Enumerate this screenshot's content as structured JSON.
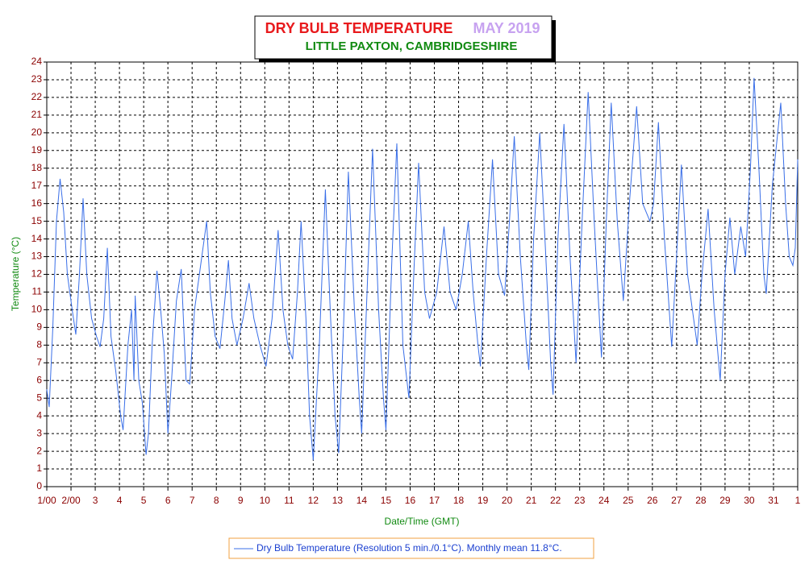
{
  "chart_data": {
    "type": "line",
    "title": "DRY BULB TEMPERATURE",
    "period": "MAY 2019",
    "subtitle": "LITTLE PAXTON, CAMBRIDGESHIRE",
    "x_label": "Date/Time (GMT)",
    "y_label": "Temperature (°C)",
    "grid": true,
    "xlim": [
      0,
      31
    ],
    "ylim": [
      0,
      24
    ],
    "yticks": [
      0,
      1,
      2,
      3,
      4,
      5,
      6,
      7,
      8,
      9,
      10,
      11,
      12,
      13,
      14,
      15,
      16,
      17,
      18,
      19,
      20,
      21,
      22,
      23,
      24
    ],
    "xticks": [
      {
        "value": 0,
        "label": "1/00"
      },
      {
        "value": 1,
        "label": "2/00"
      },
      {
        "value": 2,
        "label": "3"
      },
      {
        "value": 3,
        "label": "4"
      },
      {
        "value": 4,
        "label": "5"
      },
      {
        "value": 5,
        "label": "6"
      },
      {
        "value": 6,
        "label": "7"
      },
      {
        "value": 7,
        "label": "8"
      },
      {
        "value": 8,
        "label": "9"
      },
      {
        "value": 9,
        "label": "10"
      },
      {
        "value": 10,
        "label": "11"
      },
      {
        "value": 11,
        "label": "12"
      },
      {
        "value": 12,
        "label": "13"
      },
      {
        "value": 13,
        "label": "14"
      },
      {
        "value": 14,
        "label": "15"
      },
      {
        "value": 15,
        "label": "16"
      },
      {
        "value": 16,
        "label": "17"
      },
      {
        "value": 17,
        "label": "18"
      },
      {
        "value": 18,
        "label": "19"
      },
      {
        "value": 19,
        "label": "20"
      },
      {
        "value": 20,
        "label": "21"
      },
      {
        "value": 21,
        "label": "22"
      },
      {
        "value": 22,
        "label": "23"
      },
      {
        "value": 23,
        "label": "24"
      },
      {
        "value": 24,
        "label": "25"
      },
      {
        "value": 25,
        "label": "26"
      },
      {
        "value": 26,
        "label": "27"
      },
      {
        "value": 27,
        "label": "28"
      },
      {
        "value": 28,
        "label": "29"
      },
      {
        "value": 29,
        "label": "30"
      },
      {
        "value": 30,
        "label": "31"
      },
      {
        "value": 31,
        "label": "1"
      }
    ],
    "x": [
      0,
      0.1,
      0.25,
      0.4,
      0.55,
      0.7,
      0.85,
      1.05,
      1.2,
      1.35,
      1.5,
      1.65,
      1.85,
      2.05,
      2.2,
      2.35,
      2.5,
      2.65,
      2.85,
      3.05,
      3.15,
      3.35,
      3.5,
      3.6,
      3.65,
      3.8,
      3.95,
      4.1,
      4.2,
      4.35,
      4.55,
      4.7,
      4.85,
      5.0,
      5.15,
      5.35,
      5.55,
      5.75,
      5.9,
      6.1,
      6.35,
      6.6,
      6.75,
      6.95,
      7.15,
      7.35,
      7.5,
      7.65,
      7.85,
      8.1,
      8.35,
      8.55,
      8.8,
      9.05,
      9.3,
      9.55,
      9.75,
      9.95,
      10.15,
      10.35,
      10.5,
      10.7,
      10.85,
      11.0,
      11.25,
      11.5,
      11.7,
      11.9,
      12.05,
      12.25,
      12.45,
      12.7,
      12.9,
      13.0,
      13.25,
      13.45,
      13.7,
      13.9,
      14.0,
      14.25,
      14.45,
      14.7,
      14.95,
      15.15,
      15.35,
      15.6,
      15.8,
      16.1,
      16.4,
      16.65,
      16.9,
      17.15,
      17.4,
      17.6,
      17.8,
      17.9,
      18.15,
      18.4,
      18.65,
      18.9,
      19.1,
      19.3,
      19.55,
      19.8,
      19.9,
      20.1,
      20.35,
      20.6,
      20.8,
      20.9,
      21.1,
      21.35,
      21.6,
      21.85,
      22.1,
      22.35,
      22.6,
      22.9,
      23.1,
      23.3,
      23.55,
      23.8,
      24.05,
      24.35,
      24.6,
      24.9,
      25.05,
      25.25,
      25.5,
      25.8,
      26.0,
      26.2,
      26.45,
      26.85,
      27.05,
      27.3,
      27.55,
      27.8,
      28.0,
      28.2,
      28.4,
      28.65,
      28.85,
      29.05,
      29.2,
      29.4,
      29.6,
      29.7,
      29.95,
      30.3,
      30.5,
      30.65,
      30.8,
      30.9,
      31.0
    ],
    "series": [
      {
        "name": "Dry Bulb Temperature (Resolution 5 min./0.1°C). Monthly mean 11.8°C.",
        "color": "#3a6fe8",
        "values": [
          5.5,
          4.5,
          9,
          15,
          17.4,
          15.5,
          12,
          10,
          8.6,
          12,
          16.3,
          12,
          9.5,
          8.5,
          7.9,
          9.5,
          13.5,
          8.5,
          6.5,
          4,
          3.2,
          8,
          10,
          6,
          10.8,
          6,
          4.7,
          1.8,
          3,
          8,
          12.2,
          10,
          7.5,
          3,
          6,
          10.5,
          12.3,
          6,
          5.8,
          10,
          12.5,
          15,
          11,
          8.5,
          7.8,
          10.5,
          12.8,
          9.5,
          8,
          9.5,
          11.5,
          9.5,
          8,
          6.8,
          9.5,
          14.5,
          10,
          8,
          7.2,
          11,
          15,
          9.5,
          4,
          1.5,
          8,
          16.8,
          10,
          4,
          1.9,
          9,
          17.8,
          10,
          5,
          3,
          12,
          19.1,
          10,
          5,
          3.2,
          13,
          19.4,
          8,
          5,
          12,
          18.3,
          11,
          9.5,
          11,
          14.7,
          11,
          10,
          12,
          15,
          11,
          8,
          6.8,
          13,
          18.5,
          12,
          10.8,
          15,
          19.8,
          13,
          8,
          6.6,
          14,
          20,
          13,
          7,
          5.2,
          14,
          20.5,
          13,
          7,
          15,
          22.3,
          15,
          7.3,
          15,
          21.7,
          15,
          10.5,
          16,
          21.5,
          16,
          15,
          16,
          20.6,
          14,
          7.9,
          13,
          18.2,
          12,
          8,
          12,
          15.7,
          10,
          6,
          12,
          15.2,
          12,
          14.7,
          13,
          18,
          23.1,
          18,
          12,
          10.9,
          17,
          21.7,
          16,
          13,
          12.5,
          13.5,
          18.5
        ]
      }
    ]
  }
}
